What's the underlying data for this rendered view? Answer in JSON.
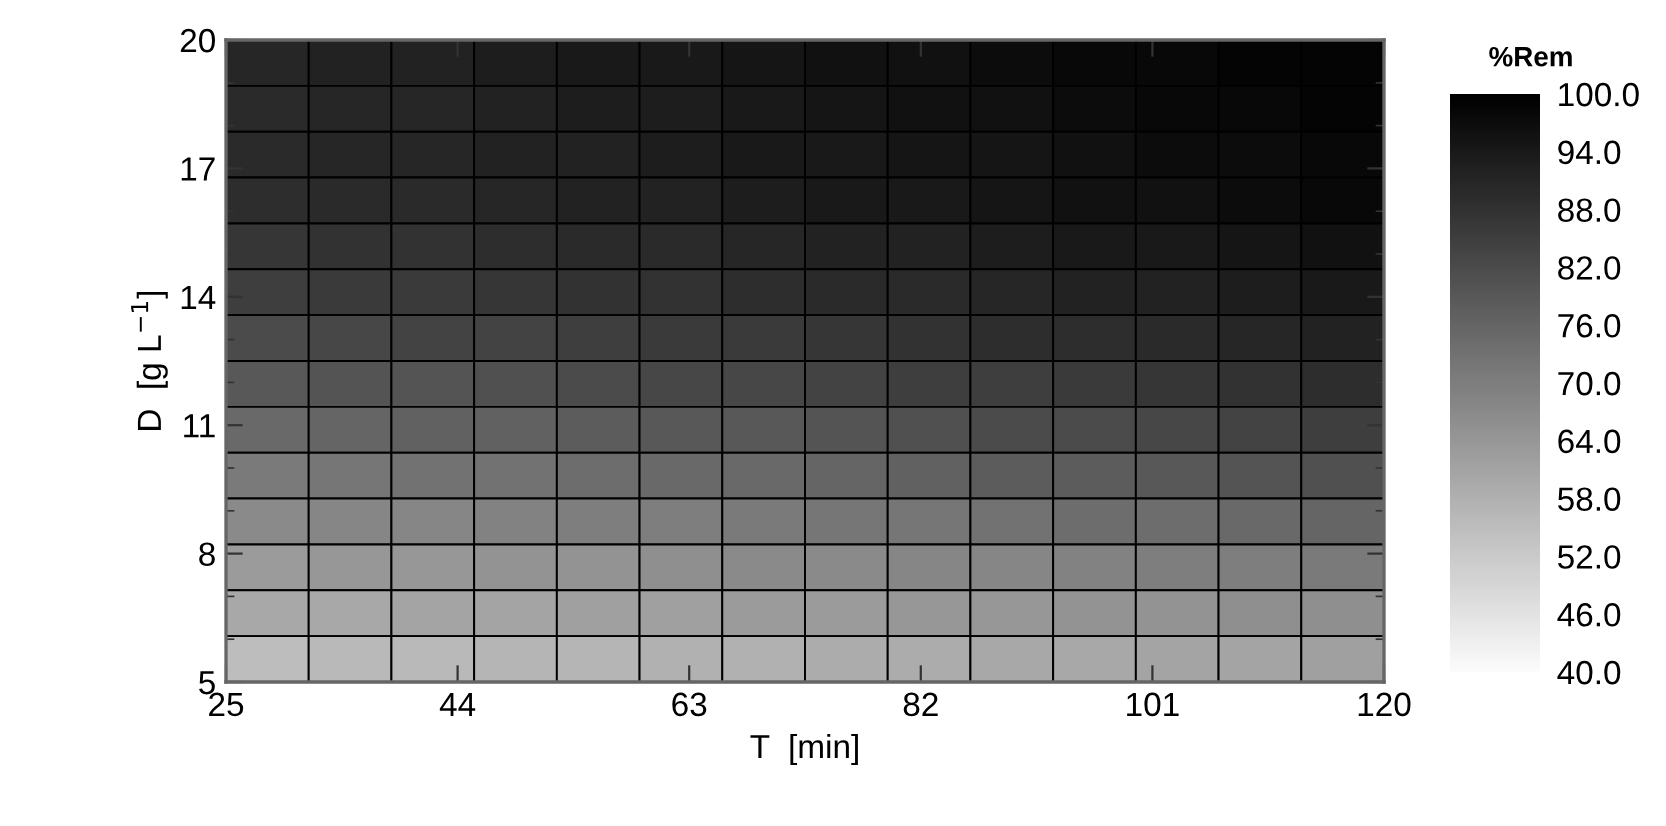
{
  "chart_data": {
    "type": "heatmap",
    "xlabel": "T  [min]",
    "ylabel": "D  [g L$^{−1}$]",
    "clabel": "%Rem",
    "xlim": [
      25,
      120
    ],
    "ylim": [
      5,
      20
    ],
    "xticks": [
      25,
      44,
      63,
      82,
      101,
      120
    ],
    "yticks": [
      5,
      8,
      11,
      14,
      17,
      20
    ],
    "clim": [
      40,
      100
    ],
    "cticks": [
      {
        "value": 40,
        "label": "40.0"
      },
      {
        "value": 46,
        "label": "46.0"
      },
      {
        "value": 52,
        "label": "52.0"
      },
      {
        "value": 58,
        "label": "58.0"
      },
      {
        "value": 64,
        "label": "64.0"
      },
      {
        "value": 70,
        "label": "70.0"
      },
      {
        "value": 76,
        "label": "76.0"
      },
      {
        "value": 82,
        "label": "82.0"
      },
      {
        "value": 88,
        "label": "88.0"
      },
      {
        "value": 94,
        "label": "94.0"
      },
      {
        "value": 100,
        "label": "100.0"
      }
    ],
    "cells": [
      [
        91,
        92,
        92,
        93,
        94,
        94,
        95,
        96,
        96,
        97,
        98,
        98,
        99,
        99
      ],
      [
        90,
        91,
        91,
        92,
        93,
        93,
        94,
        95,
        96,
        96,
        97,
        98,
        98,
        99
      ],
      [
        90,
        91,
        91,
        92,
        92,
        93,
        94,
        94,
        95,
        95,
        96,
        97,
        97,
        98
      ],
      [
        89,
        90,
        90,
        91,
        92,
        92,
        93,
        94,
        94,
        95,
        96,
        96,
        97,
        98
      ],
      [
        87,
        88,
        88,
        89,
        90,
        90,
        91,
        92,
        92,
        93,
        94,
        94,
        95,
        96
      ],
      [
        85,
        86,
        86,
        87,
        88,
        88,
        89,
        90,
        90,
        91,
        92,
        92,
        93,
        94
      ],
      [
        82,
        83,
        84,
        84,
        85,
        86,
        86,
        87,
        88,
        89,
        89,
        90,
        91,
        92
      ],
      [
        79,
        80,
        80,
        81,
        82,
        83,
        83,
        84,
        85,
        85,
        86,
        87,
        88,
        89
      ],
      [
        75,
        76,
        77,
        77,
        78,
        79,
        79,
        80,
        81,
        82,
        82,
        83,
        84,
        85
      ],
      [
        71,
        72,
        73,
        73,
        74,
        75,
        75,
        76,
        77,
        78,
        78,
        79,
        80,
        81
      ],
      [
        67,
        68,
        68,
        69,
        70,
        70,
        71,
        72,
        72,
        73,
        74,
        74,
        75,
        76
      ],
      [
        63,
        64,
        64,
        65,
        65,
        66,
        67,
        67,
        68,
        68,
        69,
        70,
        70,
        71
      ],
      [
        60,
        60,
        61,
        61,
        62,
        62,
        63,
        63,
        64,
        64,
        65,
        65,
        66,
        66
      ],
      [
        55,
        56,
        56,
        57,
        57,
        58,
        58,
        59,
        59,
        60,
        60,
        61,
        61,
        62
      ]
    ]
  }
}
